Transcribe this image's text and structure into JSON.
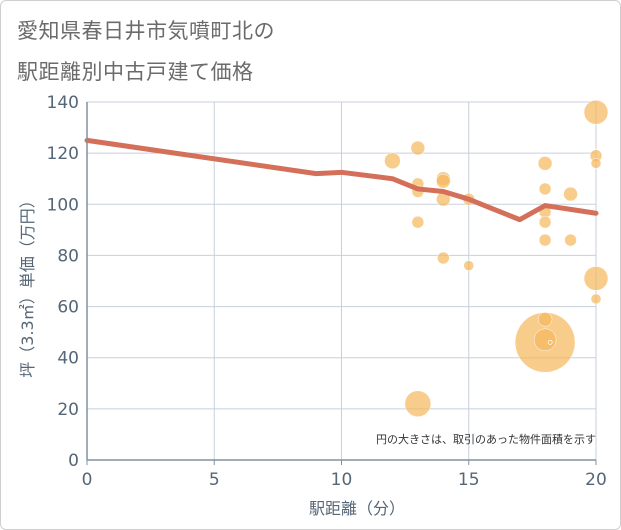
{
  "page": {
    "title_line1": "愛知県春日井市気噴町北の",
    "title_line2": "駅距離別中古戸建て価格"
  },
  "colors": {
    "line": "#d4705a",
    "bubble": "#f5b85e",
    "grid": "#c8d0dc",
    "axis": "#8090a0",
    "tick": "#556677"
  },
  "chart_data": {
    "type": "scatter",
    "xlabel": "駅距離（分）",
    "ylabel": "坪（3.3㎡）単価（万円）",
    "xlim": [
      0,
      20
    ],
    "ylim": [
      0,
      140
    ],
    "xticks": [
      0,
      5,
      10,
      15,
      20
    ],
    "yticks": [
      0,
      20,
      40,
      60,
      80,
      100,
      120,
      140
    ],
    "grid": true,
    "note": "円の大きさは、取引のあった物件面積を示す",
    "trend_line": {
      "x": [
        0,
        9,
        10,
        12,
        13,
        14,
        15,
        16,
        17,
        18,
        19,
        20
      ],
      "y": [
        125,
        112,
        112.5,
        110,
        106,
        105,
        102,
        98,
        94,
        99.5,
        98,
        96.5
      ]
    },
    "bubbles": {
      "x": [
        12,
        13,
        13,
        13,
        13,
        13,
        14,
        14,
        14,
        14,
        15,
        15,
        18,
        18,
        18,
        18,
        18,
        18,
        18,
        18,
        18.2,
        19,
        19,
        20,
        20,
        20,
        20,
        20
      ],
      "y": [
        117,
        122,
        108,
        105,
        93,
        22,
        110,
        109,
        102,
        79,
        102,
        76,
        116,
        106,
        97,
        93,
        86,
        55,
        47,
        46,
        46,
        104,
        86,
        136,
        119,
        116,
        71,
        63
      ],
      "size": [
        8,
        7,
        6,
        6,
        6,
        13,
        7,
        7,
        7,
        6,
        6,
        5,
        7,
        6,
        6,
        6,
        6,
        7,
        11,
        30,
        2,
        7,
        6,
        12,
        6,
        5,
        12,
        5
      ]
    }
  }
}
